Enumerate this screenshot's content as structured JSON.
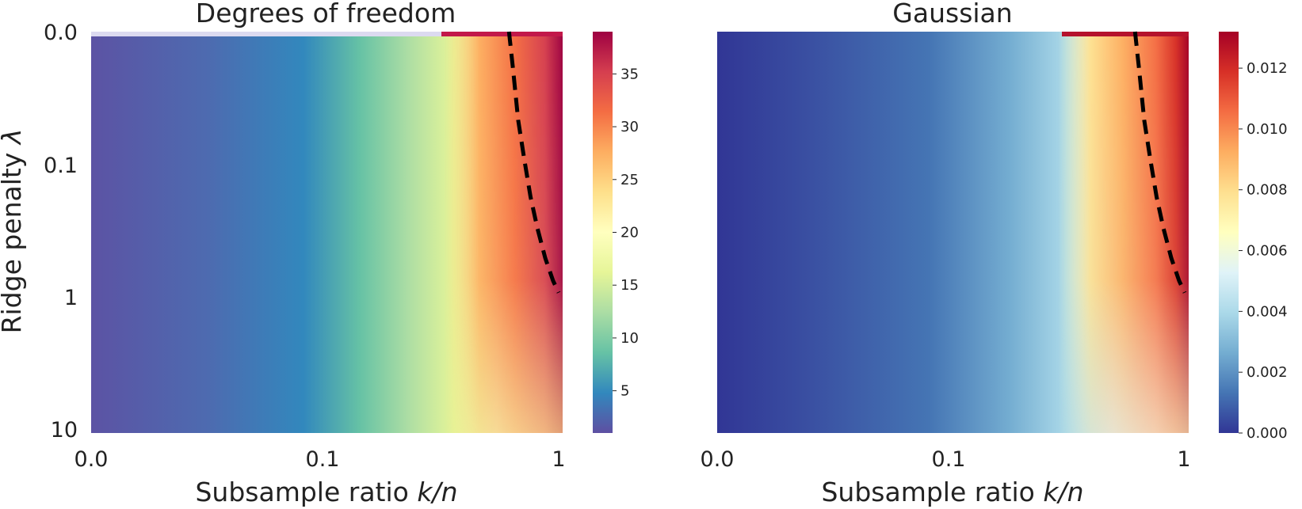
{
  "chart_data": [
    {
      "type": "heatmap",
      "title": "Degrees of freedom",
      "xlabel": "Subsample ratio k/n",
      "xlabel_text": "Subsample ratio ",
      "xlabel_var": "k/n",
      "ylabel": "Ridge penalty λ",
      "ylabel_text": "Ridge penalty ",
      "ylabel_var": "λ",
      "x_ticks": [
        "0.0",
        "0.1",
        "1"
      ],
      "y_ticks": [
        "0.0",
        "0.1",
        "1",
        "10"
      ],
      "x_range": [
        0.001,
        1
      ],
      "y_range": [
        0,
        10
      ],
      "colormap": "Spectral_r",
      "colorbar_range": [
        1,
        39
      ],
      "colorbar_ticks": [
        "5",
        "10",
        "15",
        "20",
        "25",
        "30",
        "35"
      ],
      "colorbar_tick_values": [
        5,
        10,
        15,
        20,
        25,
        30,
        35
      ],
      "dashed_contour": {
        "style": "dashed",
        "color": "#000000",
        "points": [
          [
            0.48,
            0.0
          ],
          [
            0.51,
            0.02
          ],
          [
            0.55,
            0.05
          ],
          [
            0.6,
            0.1
          ],
          [
            0.66,
            0.2
          ],
          [
            0.73,
            0.35
          ],
          [
            0.82,
            0.6
          ],
          [
            0.92,
            0.9
          ],
          [
            1.0,
            1.1
          ]
        ]
      }
    },
    {
      "type": "heatmap",
      "title": "Gaussian",
      "xlabel": "Subsample ratio k/n",
      "xlabel_text": "Subsample ratio ",
      "xlabel_var": "k/n",
      "x_ticks": [
        "0.0",
        "0.1",
        "1"
      ],
      "x_range": [
        0.001,
        1
      ],
      "y_range": [
        0,
        10
      ],
      "colormap": "RdYlBu_r",
      "colorbar_range": [
        0.0,
        0.0132
      ],
      "colorbar_ticks": [
        "0.000",
        "0.002",
        "0.004",
        "0.006",
        "0.008",
        "0.010",
        "0.012"
      ],
      "colorbar_tick_values": [
        0.0,
        0.002,
        0.004,
        0.006,
        0.008,
        0.01,
        0.012
      ],
      "dashed_contour": {
        "style": "dashed",
        "color": "#000000",
        "points": [
          [
            0.48,
            0.0
          ],
          [
            0.51,
            0.02
          ],
          [
            0.55,
            0.05
          ],
          [
            0.6,
            0.1
          ],
          [
            0.66,
            0.2
          ],
          [
            0.73,
            0.35
          ],
          [
            0.82,
            0.6
          ],
          [
            0.92,
            0.9
          ],
          [
            1.0,
            1.1
          ]
        ]
      }
    }
  ]
}
